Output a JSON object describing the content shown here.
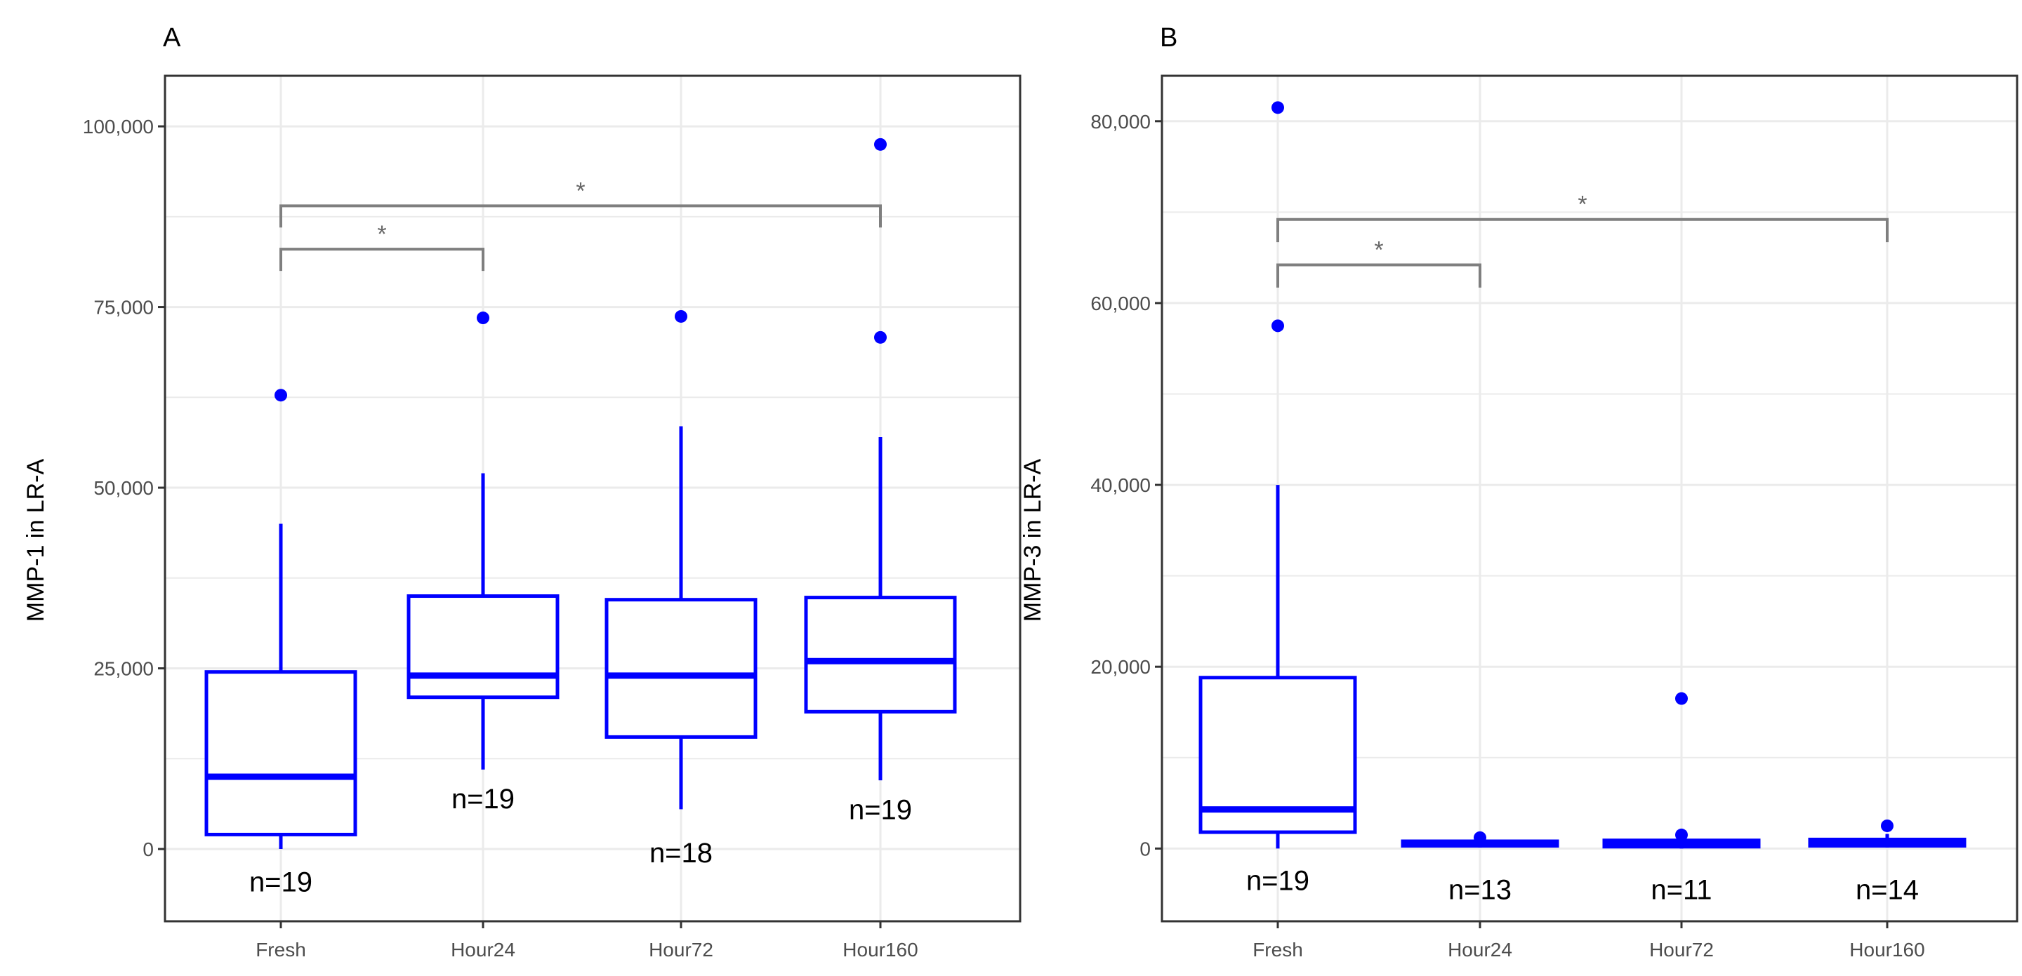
{
  "chart_data": [
    {
      "panel": "A",
      "type": "boxplot",
      "ylabel": "MMP-1 in LR-A",
      "xlabel": "",
      "categories": [
        "Fresh",
        "Hour24",
        "Hour72",
        "Hour160"
      ],
      "ylim": [
        -10000,
        107000
      ],
      "yticks": [
        0,
        25000,
        50000,
        75000,
        100000
      ],
      "ytick_labels": [
        "0",
        "25,000",
        "50,000",
        "75,000",
        "100,000"
      ],
      "grid": true,
      "series_color": "#0000FF",
      "boxes": [
        {
          "category": "Fresh",
          "q1": 2000,
          "median": 10000,
          "q3": 24500,
          "whisker_low": 0,
          "whisker_high": 45000,
          "outliers": [
            62800
          ],
          "n_label": "n=19"
        },
        {
          "category": "Hour24",
          "q1": 21000,
          "median": 24000,
          "q3": 35000,
          "whisker_low": 11000,
          "whisker_high": 52000,
          "outliers": [
            73500
          ],
          "n_label": "n=19"
        },
        {
          "category": "Hour72",
          "q1": 15500,
          "median": 24000,
          "q3": 34500,
          "whisker_low": 5500,
          "whisker_high": 58500,
          "outliers": [
            73700
          ],
          "n_label": "n=18"
        },
        {
          "category": "Hour160",
          "q1": 19000,
          "median": 26000,
          "q3": 34800,
          "whisker_low": 9500,
          "whisker_high": 57000,
          "outliers": [
            70800,
            97500
          ],
          "n_label": "n=19"
        }
      ],
      "n_label_values": [
        -4500,
        7000,
        -500,
        5500
      ],
      "comparisons": [
        {
          "from": "Fresh",
          "to": "Hour24",
          "y": 83000,
          "drop_left": 80000,
          "drop_right": 80000,
          "label": "*"
        },
        {
          "from": "Fresh",
          "to": "Hour160",
          "y": 89000,
          "drop_left": 86000,
          "drop_right": 86000,
          "label": "*"
        }
      ]
    },
    {
      "panel": "B",
      "type": "boxplot",
      "ylabel": "MMP-3 in LR-A",
      "xlabel": "",
      "categories": [
        "Fresh",
        "Hour24",
        "Hour72",
        "Hour160"
      ],
      "ylim": [
        -8000,
        85000
      ],
      "yticks": [
        0,
        20000,
        40000,
        60000,
        80000
      ],
      "ytick_labels": [
        "0",
        "20,000",
        "40,000",
        "60,000",
        "80,000"
      ],
      "grid": true,
      "series_color": "#0000FF",
      "boxes": [
        {
          "category": "Fresh",
          "q1": 1800,
          "median": 4300,
          "q3": 18800,
          "whisker_low": 0,
          "whisker_high": 40000,
          "outliers": [
            57500,
            81500
          ],
          "n_label": "n=19"
        },
        {
          "category": "Hour24",
          "q1": 300,
          "median": 500,
          "q3": 800,
          "whisker_low": 100,
          "whisker_high": 1100,
          "outliers": [
            1200
          ],
          "n_label": "n=13"
        },
        {
          "category": "Hour72",
          "q1": 200,
          "median": 500,
          "q3": 900,
          "whisker_low": 0,
          "whisker_high": 1300,
          "outliers": [
            1500,
            16500
          ],
          "n_label": "n=11"
        },
        {
          "category": "Hour160",
          "q1": 300,
          "median": 600,
          "q3": 1000,
          "whisker_low": 100,
          "whisker_high": 1600,
          "outliers": [
            2500
          ],
          "n_label": "n=14"
        }
      ],
      "n_label_values": [
        -3500,
        -4500,
        -4500,
        -4500
      ],
      "comparisons": [
        {
          "from": "Fresh",
          "to": "Hour24",
          "y": 64200,
          "drop_left": 61700,
          "drop_right": 61700,
          "label": "*"
        },
        {
          "from": "Fresh",
          "to": "Hour160",
          "y": 69200,
          "drop_left": 66700,
          "drop_right": 66700,
          "label": "*"
        }
      ]
    }
  ]
}
